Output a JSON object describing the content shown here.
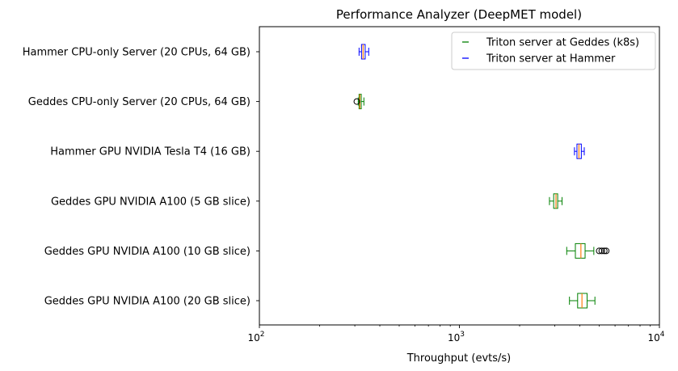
{
  "chart_data": {
    "type": "box",
    "title": "Performance Analyzer (DeepMET model)",
    "xlabel": "Throughput (evts/s)",
    "ylabel": "",
    "xscale": "log",
    "xlim": [
      100,
      10000
    ],
    "xticks": [
      {
        "value": 100,
        "base": "10",
        "exp": "2"
      },
      {
        "value": 1000,
        "base": "10",
        "exp": "3"
      },
      {
        "value": 10000,
        "base": "10",
        "exp": "4"
      }
    ],
    "legend": {
      "placement": "top-right",
      "entries": [
        {
          "label": "Triton server at Geddes (k8s)",
          "color": "#008000"
        },
        {
          "label": "Triton server at Hammer",
          "color": "#0000ff"
        }
      ]
    },
    "median_color": "#ff7f0e",
    "categories": [
      "Hammer CPU-only Server (20 CPUs, 64 GB)",
      "Geddes CPU-only Server (20 CPUs, 64 GB)",
      "Hammer GPU NVIDIA Tesla T4 (16 GB)",
      "Geddes GPU NVIDIA A100 (5 GB slice)",
      "Geddes GPU NVIDIA A100 (10 GB slice)",
      "Geddes GPU NVIDIA A100 (20 GB slice)"
    ],
    "boxes": [
      {
        "category": "Hammer CPU-only Server (20 CPUs, 64 GB)",
        "server": "Hammer",
        "color": "#0000ff",
        "whislo": 315,
        "q1": 324,
        "med": 330,
        "q3": 338,
        "whishi": 352,
        "fliers": []
      },
      {
        "category": "Geddes CPU-only Server (20 CPUs, 64 GB)",
        "server": "Geddes",
        "color": "#008000",
        "whislo": 312,
        "q1": 315,
        "med": 318,
        "q3": 323,
        "whishi": 333,
        "fliers": [
          307
        ]
      },
      {
        "category": "Hammer GPU NVIDIA Tesla T4 (16 GB)",
        "server": "Hammer",
        "color": "#0000ff",
        "whislo": 3760,
        "q1": 3870,
        "med": 3960,
        "q3": 4070,
        "whishi": 4210,
        "fliers": []
      },
      {
        "category": "Geddes GPU NVIDIA A100 (5 GB slice)",
        "server": "Geddes",
        "color": "#008000",
        "whislo": 2820,
        "q1": 2960,
        "med": 3040,
        "q3": 3100,
        "whishi": 3260,
        "fliers": []
      },
      {
        "category": "Geddes GPU NVIDIA A100 (10 GB slice)",
        "server": "Geddes",
        "color": "#008000",
        "whislo": 3440,
        "q1": 3800,
        "med": 4050,
        "q3": 4250,
        "whishi": 4700,
        "fliers": [
          5000,
          5150,
          5300,
          5420
        ]
      },
      {
        "category": "Geddes GPU NVIDIA A100 (20 GB slice)",
        "server": "Geddes",
        "color": "#008000",
        "whislo": 3550,
        "q1": 3900,
        "med": 4100,
        "q3": 4350,
        "whishi": 4760,
        "fliers": []
      }
    ]
  }
}
